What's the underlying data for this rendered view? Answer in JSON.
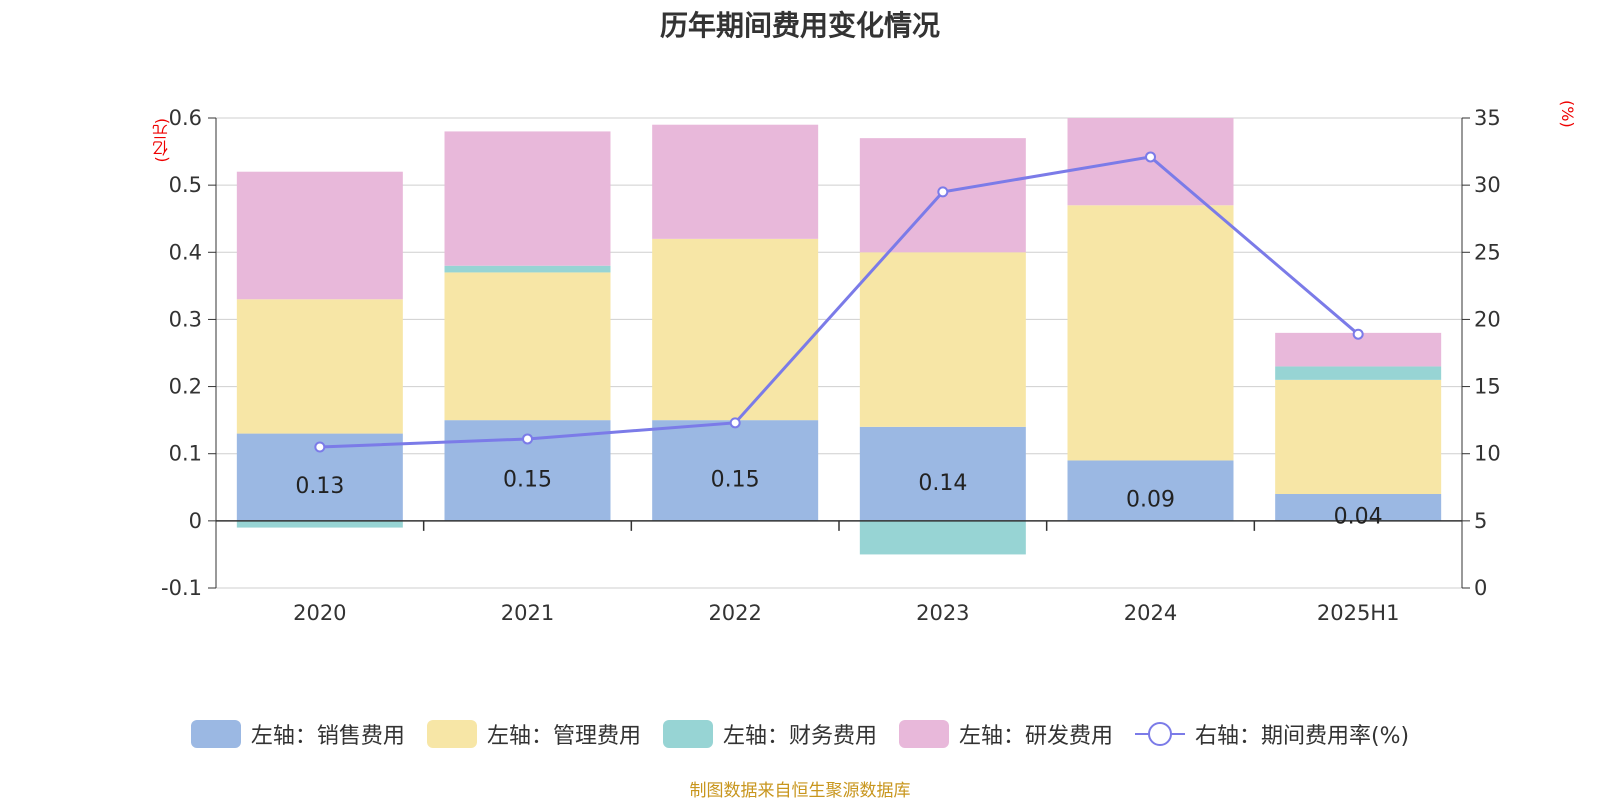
{
  "title": "历年期间费用变化情况",
  "unit_left": "(亿元)",
  "unit_right": "(%)",
  "source": "制图数据来自恒生聚源数据库",
  "legend": [
    {
      "label": "左轴：销售费用",
      "color": "#9bb8e3"
    },
    {
      "label": "左轴：管理费用",
      "color": "#f7e6a6"
    },
    {
      "label": "左轴：财务费用",
      "color": "#97d4d4"
    },
    {
      "label": "左轴：研发费用",
      "color": "#e8b8da"
    },
    {
      "label": "右轴：期间费用率(%)",
      "color": "#7b7be8"
    }
  ],
  "chart_data": {
    "type": "bar",
    "stacked": true,
    "categories": [
      "2020",
      "2021",
      "2022",
      "2023",
      "2024",
      "2025H1"
    ],
    "series": [
      {
        "name": "左轴：销售费用",
        "axis": "left",
        "color": "#9bb8e3",
        "values": [
          0.13,
          0.15,
          0.15,
          0.14,
          0.09,
          0.04
        ]
      },
      {
        "name": "左轴：管理费用",
        "axis": "left",
        "color": "#f7e6a6",
        "values": [
          0.2,
          0.22,
          0.27,
          0.26,
          0.38,
          0.17
        ]
      },
      {
        "name": "左轴：财务费用",
        "axis": "left",
        "color": "#97d4d4",
        "values": [
          -0.01,
          0.01,
          0.0,
          -0.05,
          0.0,
          0.02
        ]
      },
      {
        "name": "左轴：研发费用",
        "axis": "left",
        "color": "#e8b8da",
        "values": [
          0.19,
          0.2,
          0.17,
          0.17,
          0.13,
          0.05
        ]
      },
      {
        "name": "右轴：期间费用率(%)",
        "axis": "right",
        "type": "line",
        "color": "#7b7be8",
        "values": [
          10.5,
          11.1,
          12.3,
          29.5,
          32.1,
          18.9
        ]
      }
    ],
    "data_labels": [
      "0.13",
      "0.15",
      "0.15",
      "0.14",
      "0.09",
      "0.04"
    ],
    "left_axis": {
      "min": -0.1,
      "max": 0.6,
      "ticks": [
        "-0.1",
        "0",
        "0.1",
        "0.2",
        "0.3",
        "0.4",
        "0.5",
        "0.6"
      ]
    },
    "right_axis": {
      "min": 0,
      "max": 35,
      "ticks": [
        "0",
        "5",
        "10",
        "15",
        "20",
        "25",
        "30",
        "35"
      ]
    },
    "grid": true,
    "legend_position": "bottom"
  }
}
